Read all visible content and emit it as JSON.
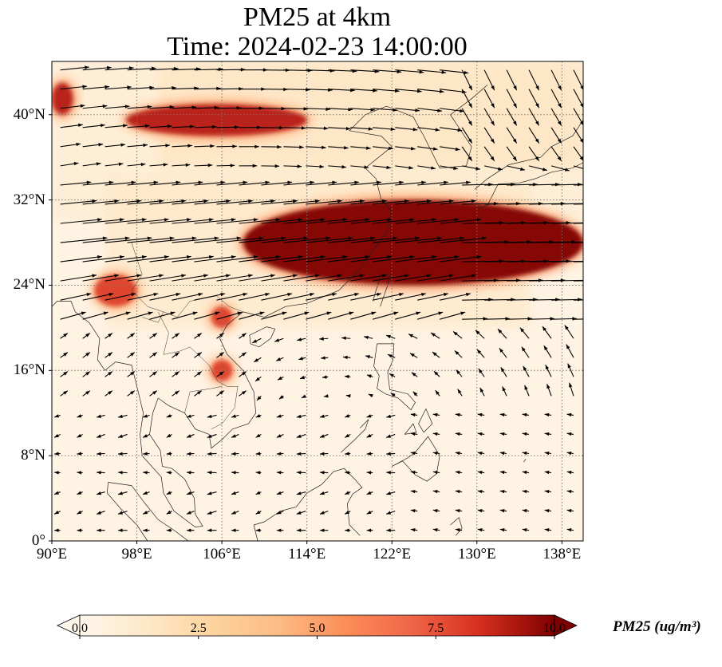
{
  "chart_data": {
    "type": "heatmap",
    "title_line1": "PM25 at 4km",
    "title_line2": "Time: 2024-02-23 14:00:00",
    "projection": "lat-lon map with wind vectors",
    "lon_range": [
      90,
      140
    ],
    "lat_range": [
      0,
      45
    ],
    "x_ticks": [
      {
        "value": 90,
        "label": "90°E"
      },
      {
        "value": 98,
        "label": "98°E"
      },
      {
        "value": 106,
        "label": "106°E"
      },
      {
        "value": 114,
        "label": "114°E"
      },
      {
        "value": 122,
        "label": "122°E"
      },
      {
        "value": 130,
        "label": "130°E"
      },
      {
        "value": 138,
        "label": "138°E"
      }
    ],
    "y_ticks": [
      {
        "value": 0,
        "label": "0°"
      },
      {
        "value": 8,
        "label": "8°N"
      },
      {
        "value": 16,
        "label": "16°N"
      },
      {
        "value": 24,
        "label": "24°N"
      },
      {
        "value": 32,
        "label": "32°N"
      },
      {
        "value": 40,
        "label": "40°N"
      }
    ],
    "grid": true,
    "colorbar": {
      "label": "PM25 (ug/m³)",
      "min": 0.0,
      "max": 10.0,
      "extend": "both",
      "colormap": "OrRd",
      "ticks": [
        "0.0",
        "2.5",
        "5.0",
        "7.5",
        "10.0"
      ],
      "tick_values": [
        0,
        2.5,
        5,
        7.5,
        10
      ],
      "placement": "bottom"
    },
    "plumes": [
      {
        "region": "northern China band",
        "lon": [
          97,
          114
        ],
        "lat": [
          38,
          41
        ],
        "value": 9
      },
      {
        "region": "East China Sea / southern Japan band",
        "lon": [
          108,
          140
        ],
        "lat": [
          24,
          32
        ],
        "value": 10
      },
      {
        "region": "Myanmar",
        "lon": [
          94,
          98
        ],
        "lat": [
          22,
          25
        ],
        "value": 8
      },
      {
        "region": "Laos",
        "lon": [
          105,
          107
        ],
        "lat": [
          15,
          17
        ],
        "value": 8
      },
      {
        "region": "northern Vietnam",
        "lon": [
          105,
          107
        ],
        "lat": [
          20,
          22
        ],
        "value": 8
      },
      {
        "region": "western edge",
        "lon": [
          90,
          92
        ],
        "lat": [
          40,
          43
        ],
        "value": 9
      }
    ],
    "wind": "westerly jet north of 20°N, weaker easterlies over the South China Sea"
  }
}
